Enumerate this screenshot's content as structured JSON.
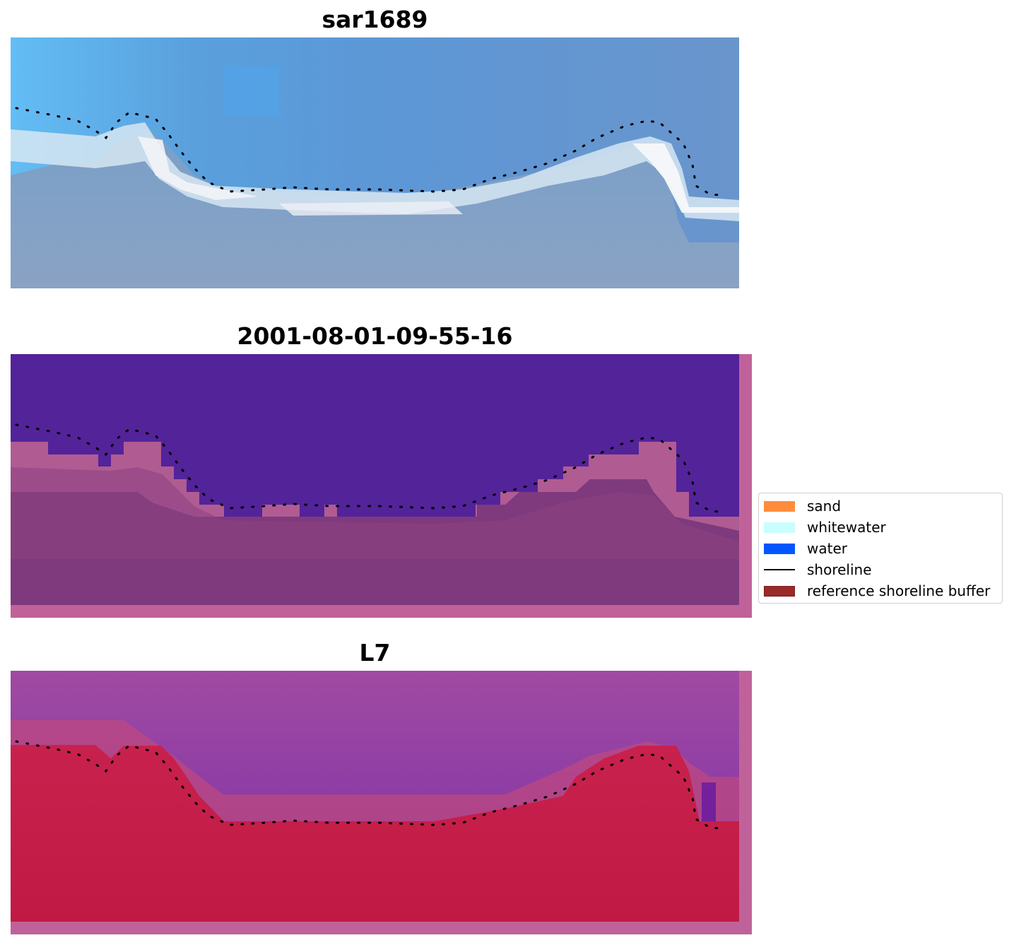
{
  "panels": [
    {
      "title": "sar1689",
      "kind": "rgb"
    },
    {
      "title": "2001-08-01-09-55-16",
      "kind": "classified"
    },
    {
      "title": "L7",
      "kind": "mndwi"
    }
  ],
  "legend": {
    "items": [
      {
        "label": "sand",
        "color": "#ff8c3a",
        "kind": "patch"
      },
      {
        "label": "whitewater",
        "color": "#c8fefe",
        "kind": "patch"
      },
      {
        "label": "water",
        "color": "#0057ff",
        "kind": "patch"
      },
      {
        "label": "shoreline",
        "color": "#000000",
        "kind": "line"
      },
      {
        "label": "reference shoreline buffer",
        "color": "#9b2a2a",
        "kind": "patch"
      }
    ]
  },
  "colors": {
    "rgb_sky": "#6a9fd6",
    "classified_water": "#53239a",
    "classified_land": "#7e3a7c",
    "buffer_pink": "#c0629a",
    "index_water": "#9a47a6",
    "index_land": "#c21a48"
  }
}
